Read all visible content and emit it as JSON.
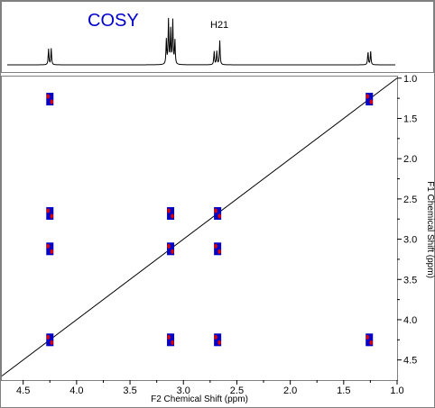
{
  "chart_data": {
    "type": "heatmap",
    "title": "COSY",
    "peak_label": "H21",
    "xlabel": "F2 Chemical Shift (ppm)",
    "ylabel": "F1 Chemical Shift (ppm)",
    "xlim": [
      4.7,
      1.0
    ],
    "ylim": [
      0.98,
      4.75
    ],
    "x_ticks": [
      "4.5",
      "4.0",
      "3.5",
      "3.0",
      "2.5",
      "2.0",
      "1.5",
      "1.0"
    ],
    "x_tick_values": [
      4.5,
      4.0,
      3.5,
      3.0,
      2.5,
      2.0,
      1.5,
      1.0
    ],
    "y_ticks": [
      "1.0",
      "1.5",
      "2.0",
      "2.5",
      "3.0",
      "3.5",
      "4.0",
      "4.5"
    ],
    "y_tick_values": [
      1.0,
      1.5,
      2.0,
      2.5,
      3.0,
      3.5,
      4.0,
      4.5
    ],
    "diagonal": true,
    "projection_1d": [
      {
        "shift": 4.25,
        "multiplet": "doublet",
        "height": 0.6
      },
      {
        "shift": 3.12,
        "multiplet": "multiplet",
        "height": 1.0
      },
      {
        "shift": 2.7,
        "multiplet": "doublet",
        "height": 0.5
      },
      {
        "shift": 2.66,
        "multiplet": "singlet",
        "height": 0.45
      },
      {
        "shift": 1.26,
        "multiplet": "doublet",
        "height": 0.5
      }
    ],
    "cross_peaks": [
      {
        "f2": 4.25,
        "f1": 1.26
      },
      {
        "f2": 4.25,
        "f1": 2.68
      },
      {
        "f2": 4.25,
        "f1": 3.12
      },
      {
        "f2": 4.25,
        "f1": 4.25
      },
      {
        "f2": 3.12,
        "f1": 2.68
      },
      {
        "f2": 3.12,
        "f1": 3.12
      },
      {
        "f2": 3.12,
        "f1": 4.25
      },
      {
        "f2": 2.68,
        "f1": 2.68
      },
      {
        "f2": 2.68,
        "f1": 3.12
      },
      {
        "f2": 2.68,
        "f1": 4.25
      },
      {
        "f2": 1.26,
        "f1": 1.26
      },
      {
        "f2": 1.26,
        "f1": 4.25
      }
    ],
    "colors": {
      "positive": "#0000cc",
      "negative": "#dd0000",
      "title": "#0000cc",
      "axis": "#000000"
    }
  }
}
